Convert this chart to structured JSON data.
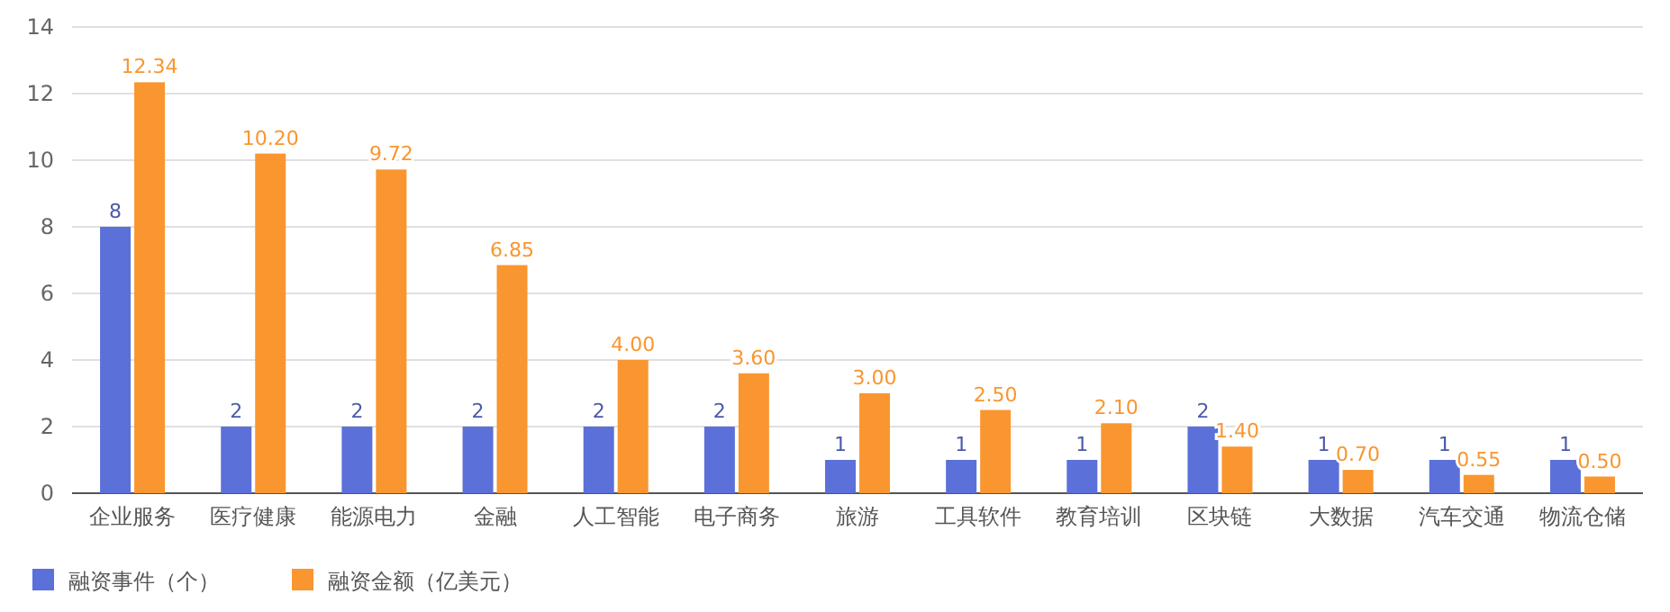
{
  "chart_data": {
    "type": "bar",
    "categories": [
      "企业服务",
      "医疗健康",
      "能源电力",
      "金融",
      "人工智能",
      "电子商务",
      "旅游",
      "工具软件",
      "教育培训",
      "区块链",
      "大数据",
      "汽车交通",
      "物流仓储"
    ],
    "series": [
      {
        "name": "融资事件（个）",
        "color": "#5b70d9",
        "values": [
          8,
          2,
          2,
          2,
          2,
          2,
          1,
          1,
          1,
          2,
          1,
          1,
          1
        ]
      },
      {
        "name": "融资金额（亿美元）",
        "color": "#f9962f",
        "values": [
          12.34,
          10.2,
          9.72,
          6.85,
          4.0,
          3.6,
          3.0,
          2.5,
          2.1,
          1.4,
          0.7,
          0.55,
          0.5
        ],
        "value_labels": [
          "12.34",
          "10.20",
          "9.72",
          "6.85",
          "4.00",
          "3.60",
          "3.00",
          "2.50",
          "2.10",
          "1.40",
          "0.70",
          "0.55",
          "0.50"
        ]
      }
    ],
    "ylim": [
      0,
      14
    ],
    "yticks": [
      0,
      2,
      4,
      6,
      8,
      10,
      12,
      14
    ],
    "grid": "y",
    "legend": "bottom left",
    "data_labels": true
  }
}
